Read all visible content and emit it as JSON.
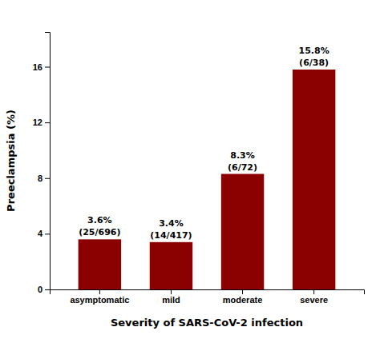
{
  "chart_data": {
    "type": "bar",
    "categories": [
      "asymptomatic",
      "mild",
      "moderate",
      "severe"
    ],
    "values": [
      3.6,
      3.4,
      8.3,
      15.8
    ],
    "value_labels": [
      "3.6%",
      "3.4%",
      "8.3%",
      "15.8%"
    ],
    "value_sublabels": [
      "(25/696)",
      "(14/417)",
      "(6/72)",
      "(6/38)"
    ],
    "data_labels": true,
    "color": "#8B0000",
    "xlabel": "Severity of SARS-CoV-2 infection",
    "ylabel": "Preeclampsia (%)",
    "ylim": [
      0,
      18.5
    ],
    "yticks": [
      0,
      4,
      8,
      12,
      16
    ]
  }
}
